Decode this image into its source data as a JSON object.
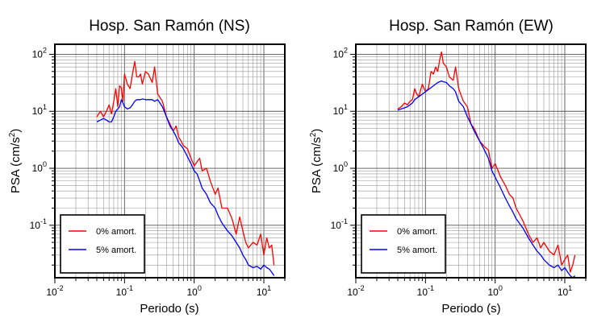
{
  "chart_data": [
    {
      "type": "line",
      "title": "Hosp. San Ramón (NS)",
      "xlabel": "Periodo (s)",
      "ylabel": "PSA (cm/s2)",
      "xscale": "log",
      "yscale": "log",
      "xlim": [
        0.01,
        20
      ],
      "ylim": [
        0.012,
        150
      ],
      "grid": true,
      "legend_position": "bottom-left",
      "x_tick_labels": [
        {
          "base": "10",
          "exp": "-2",
          "value": 0.01
        },
        {
          "base": "10",
          "exp": "-1",
          "value": 0.1
        },
        {
          "base": "10",
          "exp": "0",
          "value": 1
        },
        {
          "base": "10",
          "exp": "1",
          "value": 10
        }
      ],
      "y_tick_labels": [
        {
          "base": "10",
          "exp": "-1",
          "value": 0.1
        },
        {
          "base": "10",
          "exp": "0",
          "value": 1
        },
        {
          "base": "10",
          "exp": "1",
          "value": 10
        },
        {
          "base": "10",
          "exp": "2",
          "value": 100
        }
      ],
      "series": [
        {
          "name": "0% amort.",
          "color": "#ff0000",
          "x": [
            0.04,
            0.045,
            0.05,
            0.055,
            0.06,
            0.065,
            0.07,
            0.075,
            0.08,
            0.085,
            0.09,
            0.095,
            0.1,
            0.11,
            0.12,
            0.13,
            0.14,
            0.15,
            0.16,
            0.17,
            0.18,
            0.2,
            0.22,
            0.25,
            0.27,
            0.3,
            0.35,
            0.4,
            0.45,
            0.5,
            0.55,
            0.6,
            0.65,
            0.7,
            0.8,
            0.9,
            1.0,
            1.1,
            1.2,
            1.3,
            1.5,
            1.7,
            2.0,
            2.2,
            2.5,
            3.0,
            3.5,
            4.0,
            4.5,
            5.0,
            5.5,
            6.0,
            7.0,
            8.0,
            9.0,
            10.0,
            11.0,
            12.0,
            13.0,
            14.0
          ],
          "y": [
            8,
            10,
            8,
            10,
            13,
            9,
            15,
            25,
            12,
            28,
            26,
            15,
            45,
            30,
            25,
            45,
            75,
            40,
            40,
            45,
            30,
            50,
            45,
            32,
            60,
            20,
            15,
            8,
            6,
            4.5,
            5.5,
            3.5,
            3,
            2.5,
            2.2,
            1.5,
            1.1,
            1.3,
            1.5,
            0.9,
            1.0,
            0.6,
            0.35,
            0.45,
            0.2,
            0.2,
            0.13,
            0.07,
            0.14,
            0.08,
            0.05,
            0.04,
            0.05,
            0.045,
            0.07,
            0.03,
            0.06,
            0.04,
            0.045,
            0.02
          ]
        },
        {
          "name": "5% amort.",
          "color": "#0000ff",
          "x": [
            0.04,
            0.045,
            0.05,
            0.055,
            0.06,
            0.065,
            0.07,
            0.075,
            0.08,
            0.085,
            0.09,
            0.095,
            0.1,
            0.11,
            0.12,
            0.13,
            0.14,
            0.15,
            0.16,
            0.17,
            0.18,
            0.2,
            0.22,
            0.25,
            0.27,
            0.3,
            0.35,
            0.4,
            0.45,
            0.5,
            0.55,
            0.6,
            0.65,
            0.7,
            0.8,
            0.9,
            1.0,
            1.1,
            1.2,
            1.3,
            1.5,
            1.7,
            2.0,
            2.2,
            2.5,
            3.0,
            3.5,
            4.0,
            4.5,
            5.0,
            5.5,
            6.0,
            7.0,
            8.0,
            9.0,
            10.0,
            11.0,
            12.0,
            13.0,
            14.0
          ],
          "y": [
            6.5,
            7,
            7.5,
            7,
            6.5,
            6.5,
            8,
            10,
            11,
            12,
            16,
            14,
            12,
            11,
            11.5,
            13,
            15,
            16,
            16,
            16,
            16.5,
            16,
            16,
            16,
            15,
            16,
            12,
            8,
            5.5,
            4.5,
            3.6,
            2.8,
            2.5,
            2.2,
            1.6,
            1.2,
            0.9,
            0.8,
            0.6,
            0.45,
            0.35,
            0.25,
            0.2,
            0.15,
            0.11,
            0.08,
            0.065,
            0.05,
            0.04,
            0.03,
            0.025,
            0.02,
            0.018,
            0.019,
            0.017,
            0.02,
            0.018,
            0.017,
            0.015,
            0.013
          ]
        }
      ]
    },
    {
      "type": "line",
      "title": "Hosp. San Ramón (EW)",
      "xlabel": "Periodo (s)",
      "ylabel": "PSA (cm/s2)",
      "xscale": "log",
      "yscale": "log",
      "xlim": [
        0.01,
        20
      ],
      "ylim": [
        0.012,
        150
      ],
      "grid": true,
      "legend_position": "bottom-left",
      "x_tick_labels": [
        {
          "base": "10",
          "exp": "-2",
          "value": 0.01
        },
        {
          "base": "10",
          "exp": "-1",
          "value": 0.1
        },
        {
          "base": "10",
          "exp": "0",
          "value": 1
        },
        {
          "base": "10",
          "exp": "1",
          "value": 10
        }
      ],
      "y_tick_labels": [
        {
          "base": "10",
          "exp": "-1",
          "value": 0.1
        },
        {
          "base": "10",
          "exp": "0",
          "value": 1
        },
        {
          "base": "10",
          "exp": "1",
          "value": 10
        },
        {
          "base": "10",
          "exp": "2",
          "value": 100
        }
      ],
      "series": [
        {
          "name": "0% amort.",
          "color": "#ff0000",
          "x": [
            0.04,
            0.045,
            0.05,
            0.055,
            0.06,
            0.065,
            0.07,
            0.075,
            0.08,
            0.09,
            0.1,
            0.11,
            0.12,
            0.13,
            0.14,
            0.15,
            0.16,
            0.17,
            0.18,
            0.2,
            0.22,
            0.25,
            0.27,
            0.3,
            0.35,
            0.4,
            0.45,
            0.5,
            0.6,
            0.7,
            0.8,
            0.9,
            1.0,
            1.2,
            1.4,
            1.6,
            1.8,
            2.0,
            2.5,
            3.0,
            3.5,
            4.0,
            4.5,
            5.0,
            6.0,
            7.0,
            8.0,
            9.0,
            10.0,
            11.0,
            12.0,
            13.0,
            14.0
          ],
          "y": [
            11,
            12,
            14,
            13,
            15,
            16,
            25,
            20,
            18,
            30,
            22,
            25,
            50,
            45,
            60,
            50,
            80,
            110,
            70,
            60,
            40,
            35,
            60,
            25,
            15,
            12,
            6,
            5,
            3,
            2.4,
            2.1,
            1.0,
            1.2,
            0.7,
            0.5,
            0.35,
            0.3,
            0.2,
            0.12,
            0.07,
            0.05,
            0.06,
            0.04,
            0.05,
            0.035,
            0.03,
            0.045,
            0.02,
            0.025,
            0.03,
            0.015,
            0.02,
            0.03
          ]
        },
        {
          "name": "5% amort.",
          "color": "#0000ff",
          "x": [
            0.04,
            0.045,
            0.05,
            0.055,
            0.06,
            0.065,
            0.07,
            0.075,
            0.08,
            0.09,
            0.1,
            0.11,
            0.12,
            0.13,
            0.14,
            0.15,
            0.16,
            0.17,
            0.18,
            0.2,
            0.22,
            0.25,
            0.27,
            0.3,
            0.35,
            0.4,
            0.45,
            0.5,
            0.6,
            0.7,
            0.8,
            0.9,
            1.0,
            1.2,
            1.4,
            1.6,
            1.8,
            2.0,
            2.5,
            3.0,
            3.5,
            4.0,
            4.5,
            5.0,
            6.0,
            7.0,
            8.0,
            9.0,
            10.0,
            11.0,
            12.0,
            13.0,
            14.0
          ],
          "y": [
            10.5,
            11,
            11.5,
            12,
            13,
            14,
            16,
            17,
            18,
            20,
            22,
            24,
            26,
            28,
            30,
            32,
            33,
            34,
            33,
            32,
            28,
            25,
            22,
            15,
            12,
            8,
            6,
            4.5,
            3,
            2.1,
            1.5,
            0.9,
            0.7,
            0.45,
            0.3,
            0.22,
            0.17,
            0.13,
            0.09,
            0.06,
            0.045,
            0.035,
            0.03,
            0.025,
            0.02,
            0.018,
            0.02,
            0.016,
            0.018,
            0.015,
            0.013,
            0.012,
            0.013
          ]
        }
      ]
    }
  ]
}
